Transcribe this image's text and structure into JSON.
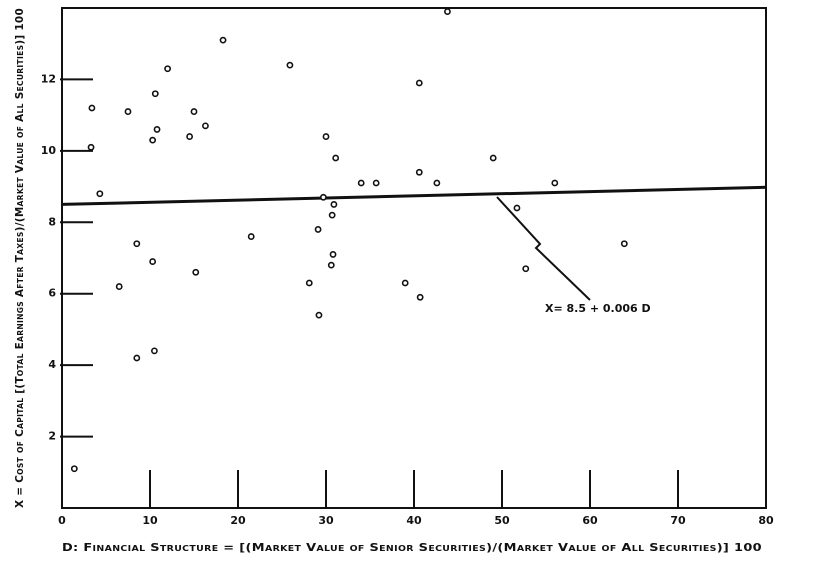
{
  "chart_data": {
    "type": "scatter",
    "x_label": "D: Financial Structure = [(Market Value of Senior Securities)/(Market Value of All Securities)] 100",
    "y_label": "X = Cost of Capital [(Total Earnings After Taxes)/(Market Value of All Securities)] 100",
    "annotation": "X= 8.5 + 0.006 D",
    "x": [
      1.4,
      3.3,
      3.4,
      4.3,
      6.5,
      8.5,
      8.5,
      7.5,
      10.6,
      10.8,
      10.3,
      10.3,
      10.5,
      12.0,
      14.5,
      15.0,
      15.2,
      16.3,
      18.3,
      21.5,
      25.9,
      28.1,
      29.1,
      29.2,
      29.7,
      30.0,
      30.6,
      30.7,
      30.8,
      30.9,
      31.1,
      34.0,
      35.7,
      39.0,
      40.6,
      40.6,
      40.7,
      42.6,
      43.8,
      49.0,
      51.7,
      52.7,
      56.0,
      63.9
    ],
    "y": [
      1.1,
      10.1,
      11.2,
      8.8,
      6.2,
      7.4,
      4.2,
      11.1,
      11.6,
      10.6,
      10.3,
      6.9,
      4.4,
      12.3,
      10.4,
      11.1,
      6.6,
      10.7,
      13.1,
      7.6,
      12.4,
      6.3,
      7.8,
      5.4,
      8.7,
      10.4,
      6.8,
      8.2,
      7.1,
      8.5,
      9.8,
      9.1,
      9.1,
      6.3,
      11.9,
      9.4,
      5.9,
      9.1,
      13.9,
      9.8,
      8.4,
      6.7,
      9.1,
      7.4
    ],
    "color": "#111111",
    "fit_line": {
      "x": [
        0,
        80
      ],
      "y": [
        8.5,
        8.98
      ]
    },
    "xlim": [
      0,
      80
    ],
    "ylim": [
      0,
      14
    ],
    "xticks": [
      0,
      10,
      20,
      30,
      40,
      50,
      60,
      70,
      80
    ],
    "yticks": [
      2,
      4,
      6,
      8,
      10,
      12
    ]
  }
}
